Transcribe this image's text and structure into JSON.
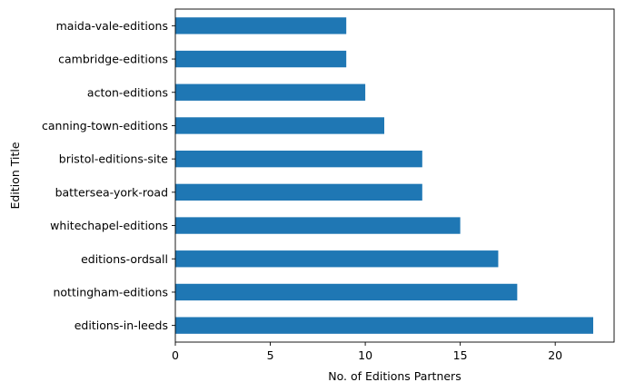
{
  "chart_data": {
    "type": "bar",
    "orientation": "horizontal",
    "categories": [
      "editions-in-leeds",
      "nottingham-editions",
      "editions-ordsall",
      "whitechapel-editions",
      "battersea-york-road",
      "bristol-editions-site",
      "canning-town-editions",
      "acton-editions",
      "cambridge-editions",
      "maida-vale-editions"
    ],
    "values": [
      22,
      18,
      17,
      15,
      13,
      13,
      11,
      10,
      9,
      9
    ],
    "xlabel": "No. of Editions Partners",
    "ylabel": "Edition Title",
    "xlim": [
      0,
      23.1
    ],
    "xticks": [
      0,
      5,
      10,
      15,
      20
    ],
    "grid": false,
    "bar_color": "#1f77b4"
  }
}
